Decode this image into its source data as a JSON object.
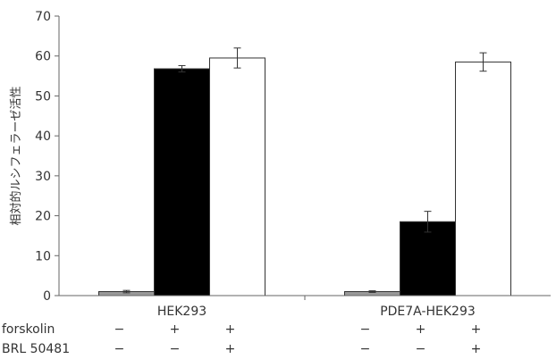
{
  "chart_data": {
    "type": "bar",
    "title": "",
    "ylabel": "相対的ルシフェラーゼ活性",
    "ylim": [
      0,
      70
    ],
    "yticks": [
      0,
      10,
      20,
      30,
      40,
      50,
      60,
      70
    ],
    "groups": [
      {
        "label": "HEK293",
        "bars": [
          {
            "value": 1.0,
            "error": 0.3,
            "color": "#999999"
          },
          {
            "value": 56.8,
            "error": 0.8,
            "color": "#000000"
          },
          {
            "value": 59.5,
            "error": 2.5,
            "color": "#ffffff"
          }
        ]
      },
      {
        "label": "PDE7A-HEK293",
        "bars": [
          {
            "value": 1.0,
            "error": 0.2,
            "color": "#999999"
          },
          {
            "value": 18.5,
            "error": 2.6,
            "color": "#000000"
          },
          {
            "value": 58.5,
            "error": 2.3,
            "color": "#ffffff"
          }
        ]
      }
    ],
    "conditions": [
      {
        "label": "forskolin",
        "values": [
          "−",
          "+",
          "+",
          "−",
          "+",
          "+"
        ]
      },
      {
        "label": "BRL 50481",
        "values": [
          "−",
          "−",
          "+",
          "−",
          "−",
          "+"
        ]
      }
    ]
  }
}
